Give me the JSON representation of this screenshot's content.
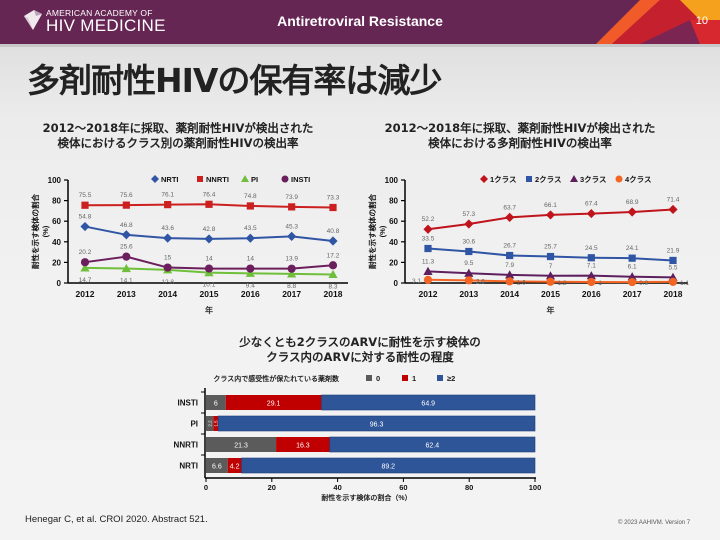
{
  "header": {
    "logo_line1": "AMERICAN ACADEMY OF",
    "logo_line2": "HIV MEDICINE",
    "title": "Antiretroviral Resistance",
    "page_number": "10"
  },
  "slide_title": "多剤耐性HIVの保有率は減少",
  "footer": {
    "citation": "Henegar C, et al. CROI 2020. Abstract 521.",
    "copyright": "© 2023 AAHIVM. Version 7"
  },
  "colors": {
    "header_bg": "#662654",
    "nrti": "#2f55a4",
    "nnrti": "#cc1f1f",
    "pi": "#6fbf3a",
    "insti": "#6b1f5c",
    "class1": "#c0141c",
    "class2": "#2f55a4",
    "class3": "#5e1f5e",
    "class4": "#f26522",
    "bar0": "#5b5b5b",
    "bar1": "#c00000",
    "bar2": "#2e5597"
  },
  "chart_data": [
    {
      "type": "line",
      "title": "2012〜2018年に採取、薬剤耐性HIVが検出された\n検体におけるクラス別の薬剤耐性HIVの検出率",
      "title_lines": [
        "2012〜2018年に採取、薬剤耐性HIVが検出された",
        "検体におけるクラス別の薬剤耐性HIVの検出率"
      ],
      "xlabel": "年",
      "ylabel_lines": [
        "耐性を示す検体の割合",
        "(%)"
      ],
      "x": [
        "2012",
        "2013",
        "2014",
        "2015",
        "2016",
        "2017",
        "2018"
      ],
      "yticks": [
        "0",
        "20",
        "40",
        "60",
        "80",
        "100"
      ],
      "ylim": [
        0,
        100
      ],
      "grid": false,
      "legend": "top",
      "series": [
        {
          "name": "NRTI",
          "marker": "diamond",
          "color": "#2f55a4",
          "values": [
            54.8,
            46.8,
            43.6,
            42.8,
            43.5,
            45.3,
            40.8
          ],
          "labels": [
            "54.8",
            "46.8",
            "43.6",
            "42.8",
            "43.5",
            "45.3",
            "40.8"
          ],
          "label_pos": "above"
        },
        {
          "name": "NNRTI",
          "marker": "square",
          "color": "#cc1f1f",
          "values": [
            75.5,
            75.6,
            76.1,
            76.4,
            74.8,
            73.9,
            73.3
          ],
          "labels": [
            "75.5",
            "75.6",
            "76.1",
            "76.4",
            "74.8",
            "73.9",
            "73.3"
          ],
          "label_pos": "above"
        },
        {
          "name": "PI",
          "marker": "triangle",
          "color": "#6fbf3a",
          "values": [
            14.7,
            14.1,
            12.8,
            10.1,
            9.4,
            8.8,
            8.3
          ],
          "labels": [
            "14.7",
            "14.1",
            "12.8",
            "10.1",
            "9.4",
            "8.8",
            "8.3"
          ],
          "label_pos": "below"
        },
        {
          "name": "INSTI",
          "marker": "circle",
          "color": "#6b1f5c",
          "values": [
            20.2,
            25.6,
            15,
            14,
            14,
            13.9,
            17.2
          ],
          "labels": [
            "20.2",
            "25.6",
            "15",
            "14",
            "14",
            "13.9",
            "17.2"
          ],
          "label_pos": "above"
        }
      ]
    },
    {
      "type": "line",
      "title": "2012〜2018年に採取、薬剤耐性HIVが検出された\n検体における多剤耐性HIVの検出率",
      "title_lines": [
        "2012〜2018年に採取、薬剤耐性HIVが検出された",
        "検体における多剤耐性HIVの検出率"
      ],
      "xlabel": "年",
      "ylabel_lines": [
        "耐性を示す検体の割合",
        "(%)"
      ],
      "x": [
        "2012",
        "2013",
        "2014",
        "2015",
        "2016",
        "2017",
        "2018"
      ],
      "yticks": [
        "0",
        "20",
        "40",
        "60",
        "80",
        "100"
      ],
      "ylim": [
        0,
        100
      ],
      "grid": false,
      "legend": "top",
      "series": [
        {
          "name": "1クラス",
          "marker": "diamond",
          "color": "#c0141c",
          "values": [
            52.2,
            57.3,
            63.7,
            66.1,
            67.4,
            68.9,
            71.4
          ],
          "labels": [
            "52.2",
            "57.3",
            "63.7",
            "66.1",
            "67.4",
            "68.9",
            "71.4"
          ],
          "label_pos": "above"
        },
        {
          "name": "2クラス",
          "marker": "square",
          "color": "#2f55a4",
          "values": [
            33.5,
            30.6,
            26.7,
            25.7,
            24.5,
            24.1,
            21.9
          ],
          "labels": [
            "33.5",
            "30.6",
            "26.7",
            "25.7",
            "24.5",
            "24.1",
            "21.9"
          ],
          "label_pos": "above"
        },
        {
          "name": "3クラス",
          "marker": "triangle",
          "color": "#5e1f5e",
          "values": [
            11.3,
            9.5,
            7.9,
            7,
            7.1,
            6.1,
            5.5
          ],
          "labels": [
            "11.3",
            "9.5",
            "7.9",
            "7",
            "7.1",
            "6.1",
            "5.5"
          ],
          "label_pos": "above"
        },
        {
          "name": "4クラス",
          "marker": "circle",
          "color": "#f26522",
          "values": [
            3.1,
            2.6,
            1.6,
            1.2,
            1,
            0.9,
            1.1
          ],
          "labels": [
            "3.1",
            "2.6",
            "1.6",
            "1.2",
            "1",
            "0.9",
            "1.1"
          ],
          "label_pos": "side"
        }
      ]
    },
    {
      "type": "bar",
      "orientation": "horizontal-stacked",
      "title": "少なくとも2クラスのARVに耐性を示す検体の\nクラス内のARVに対する耐性の程度",
      "title_lines": [
        "少なくとも2クラスのARVに耐性を示す検体の",
        "クラス内のARVに対する耐性の程度"
      ],
      "legend_title": "クラス内で感受性が保たれている薬剤数",
      "legend": "top",
      "xlabel": "耐性を示す検体の割合（%）",
      "xticks": [
        "0",
        "20",
        "40",
        "60",
        "80",
        "100"
      ],
      "xlim": [
        0,
        100
      ],
      "categories": [
        "INSTI",
        "PI",
        "NNRTI",
        "NRTI"
      ],
      "series": [
        {
          "name": "0",
          "color": "#5b5b5b",
          "values": [
            6,
            2.2,
            21.3,
            6.6
          ],
          "labels": [
            "6",
            "2.2",
            "21.3",
            "6.6"
          ]
        },
        {
          "name": "1",
          "color": "#c00000",
          "values": [
            29.1,
            1.5,
            16.3,
            4.2
          ],
          "labels": [
            "29.1",
            "1.5",
            "16.3",
            "4.2"
          ]
        },
        {
          "name": "≥2",
          "color": "#2e5597",
          "values": [
            64.9,
            96.3,
            62.4,
            89.2
          ],
          "labels": [
            "64.9",
            "96.3",
            "62.4",
            "89.2"
          ]
        }
      ]
    }
  ]
}
